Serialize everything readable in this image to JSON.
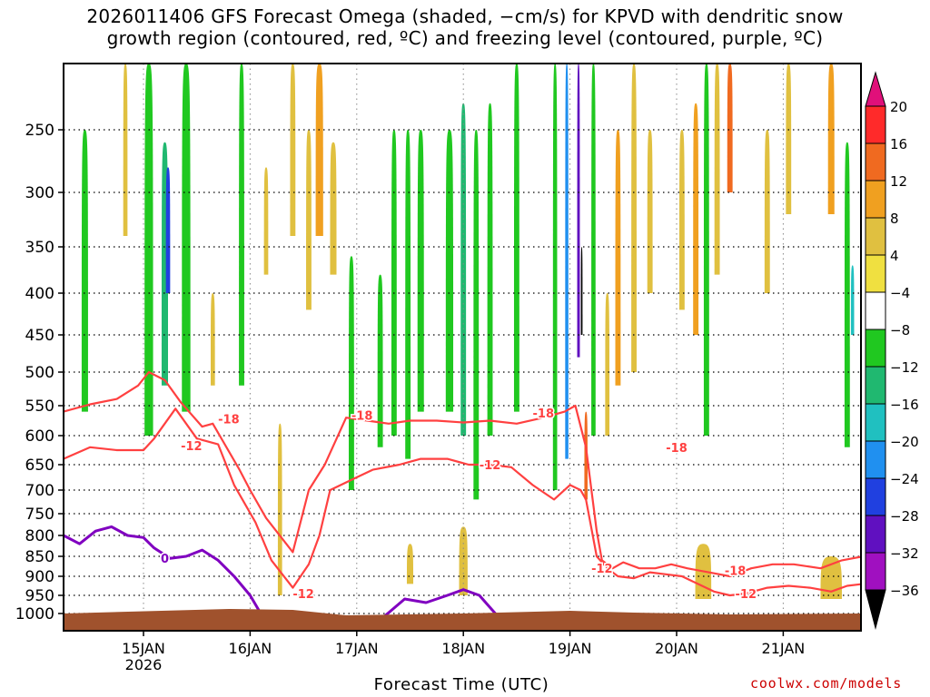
{
  "title": {
    "line1": "2026011406 GFS Forecast Omega (shaded, −cm/s) for KPVD with dendritic snow",
    "line2": "growth region (contoured, red, ºC) and freezing level (contoured, purple, ºC)"
  },
  "credit": "coolwx.com/models",
  "chart_data": {
    "type": "heatmap",
    "title": "2026011406 GFS Forecast Omega (shaded, −cm/s) for KPVD with dendritic snow growth region (contoured, red, ºC) and freezing level (contoured, purple, ºC)",
    "xlabel": "Forecast Time (UTC)",
    "ylabel": "",
    "x_ticks": [
      "15JAN",
      "16JAN",
      "17JAN",
      "18JAN",
      "19JAN",
      "20JAN",
      "21JAN"
    ],
    "x_subtick": "2026",
    "y_ticks": [
      250,
      300,
      350,
      400,
      450,
      500,
      550,
      600,
      650,
      700,
      750,
      800,
      850,
      900,
      950,
      1000
    ],
    "xlim_days": [
      14.25,
      21.75
    ],
    "ylim_hpa": [
      200,
      1025
    ],
    "colorbar": {
      "labels": [
        "20",
        "16",
        "12",
        "8",
        "4",
        "−4",
        "−8",
        "−12",
        "−16",
        "−20",
        "−24",
        "−28",
        "−32",
        "−36"
      ],
      "bounds": [
        20,
        16,
        12,
        8,
        4,
        -4,
        -8,
        -12,
        -16,
        -20,
        -24,
        -28,
        -32,
        -36
      ],
      "colors": [
        "#ff2a2a",
        "#f06a20",
        "#f0a020",
        "#e0c040",
        "#f0e040",
        "#ffffff",
        "#20c820",
        "#20b870",
        "#20c0c0",
        "#2090f0",
        "#2040e0",
        "#6010c0",
        "#a010c0",
        "#a0a0a0"
      ],
      "top_arrow_color": "#e0107a",
      "bottom_arrow_color": "#000000"
    },
    "omega_columns": [
      {
        "day": 14.35,
        "width": 0.05,
        "value": -6,
        "top": 220,
        "bottom": 640
      },
      {
        "day": 14.45,
        "width": 0.06,
        "value": -10,
        "top": 250,
        "bottom": 560
      },
      {
        "day": 14.55,
        "width": 0.05,
        "value": -7,
        "top": 260,
        "bottom": 600
      },
      {
        "day": 14.72,
        "width": 0.05,
        "value": -6,
        "top": 250,
        "bottom": 700
      },
      {
        "day": 14.83,
        "width": 0.04,
        "value": 6,
        "top": 200,
        "bottom": 340
      },
      {
        "day": 14.93,
        "width": 0.03,
        "value": -6,
        "top": 300,
        "bottom": 520
      },
      {
        "day": 15.05,
        "width": 0.08,
        "value": -8,
        "top": 200,
        "bottom": 600
      },
      {
        "day": 15.2,
        "width": 0.06,
        "value": -14,
        "top": 260,
        "bottom": 520
      },
      {
        "day": 15.23,
        "width": 0.04,
        "value": -26,
        "top": 280,
        "bottom": 400
      },
      {
        "day": 15.4,
        "width": 0.08,
        "value": -8,
        "top": 200,
        "bottom": 560
      },
      {
        "day": 15.55,
        "width": 0.05,
        "value": -6,
        "top": 250,
        "bottom": 600
      },
      {
        "day": 15.65,
        "width": 0.04,
        "value": 6,
        "top": 400,
        "bottom": 520
      },
      {
        "day": 15.78,
        "width": 0.04,
        "value": -6,
        "top": 200,
        "bottom": 480
      },
      {
        "day": 15.92,
        "width": 0.05,
        "value": -8,
        "top": 200,
        "bottom": 520
      },
      {
        "day": 16.05,
        "width": 0.05,
        "value": -6,
        "top": 220,
        "bottom": 580
      },
      {
        "day": 16.15,
        "width": 0.04,
        "value": 6,
        "top": 280,
        "bottom": 380
      },
      {
        "day": 16.28,
        "width": 0.04,
        "value": 6,
        "top": 580,
        "bottom": 950
      },
      {
        "day": 16.4,
        "width": 0.05,
        "value": 6,
        "top": 200,
        "bottom": 340
      },
      {
        "day": 16.55,
        "width": 0.05,
        "value": 6,
        "top": 250,
        "bottom": 420
      },
      {
        "day": 16.65,
        "width": 0.07,
        "value": 10,
        "top": 200,
        "bottom": 340
      },
      {
        "day": 16.78,
        "width": 0.06,
        "value": 6,
        "top": 260,
        "bottom": 380
      },
      {
        "day": 16.85,
        "width": 0.05,
        "value": -6,
        "top": 480,
        "bottom": 720
      },
      {
        "day": 16.95,
        "width": 0.05,
        "value": -8,
        "top": 360,
        "bottom": 700
      },
      {
        "day": 17.1,
        "width": 0.05,
        "value": -6,
        "top": 300,
        "bottom": 600
      },
      {
        "day": 17.22,
        "width": 0.05,
        "value": -10,
        "top": 380,
        "bottom": 620
      },
      {
        "day": 17.35,
        "width": 0.05,
        "value": -8,
        "top": 250,
        "bottom": 600
      },
      {
        "day": 17.48,
        "width": 0.05,
        "value": -10,
        "top": 250,
        "bottom": 640
      },
      {
        "day": 17.6,
        "width": 0.06,
        "value": -8,
        "top": 250,
        "bottom": 560
      },
      {
        "day": 17.73,
        "width": 0.05,
        "value": -6,
        "top": 200,
        "bottom": 520
      },
      {
        "day": 17.87,
        "width": 0.07,
        "value": -10,
        "top": 250,
        "bottom": 560
      },
      {
        "day": 18.0,
        "width": 0.05,
        "value": -12,
        "top": 230,
        "bottom": 600
      },
      {
        "day": 18.12,
        "width": 0.05,
        "value": -8,
        "top": 250,
        "bottom": 720
      },
      {
        "day": 18.25,
        "width": 0.05,
        "value": -10,
        "top": 230,
        "bottom": 600
      },
      {
        "day": 18.38,
        "width": 0.05,
        "value": -6,
        "top": 300,
        "bottom": 600
      },
      {
        "day": 18.5,
        "width": 0.05,
        "value": -8,
        "top": 200,
        "bottom": 560
      },
      {
        "day": 18.62,
        "width": 0.05,
        "value": -6,
        "top": 300,
        "bottom": 600
      },
      {
        "day": 18.75,
        "width": 0.05,
        "value": -6,
        "top": 200,
        "bottom": 520
      },
      {
        "day": 18.86,
        "width": 0.04,
        "value": -10,
        "top": 200,
        "bottom": 700
      },
      {
        "day": 18.97,
        "width": 0.03,
        "value": -22,
        "top": 200,
        "bottom": 640
      },
      {
        "day": 19.08,
        "width": 0.025,
        "value": -28,
        "top": 200,
        "bottom": 480
      },
      {
        "day": 19.11,
        "width": 0.015,
        "value": -40,
        "top": 350,
        "bottom": 450
      },
      {
        "day": 19.15,
        "width": 0.03,
        "value": 14,
        "top": 560,
        "bottom": 720
      },
      {
        "day": 19.22,
        "width": 0.04,
        "value": -8,
        "top": 200,
        "bottom": 600
      },
      {
        "day": 19.35,
        "width": 0.04,
        "value": 6,
        "top": 400,
        "bottom": 600
      },
      {
        "day": 19.45,
        "width": 0.05,
        "value": 10,
        "top": 250,
        "bottom": 520
      },
      {
        "day": 19.6,
        "width": 0.05,
        "value": 6,
        "top": 200,
        "bottom": 500
      },
      {
        "day": 19.75,
        "width": 0.05,
        "value": 6,
        "top": 250,
        "bottom": 400
      },
      {
        "day": 19.9,
        "width": 0.05,
        "value": -6,
        "top": 200,
        "bottom": 620
      },
      {
        "day": 20.05,
        "width": 0.05,
        "value": 6,
        "top": 250,
        "bottom": 420
      },
      {
        "day": 20.18,
        "width": 0.05,
        "value": 10,
        "top": 230,
        "bottom": 450
      },
      {
        "day": 20.28,
        "width": 0.05,
        "value": -8,
        "top": 200,
        "bottom": 600
      },
      {
        "day": 20.38,
        "width": 0.05,
        "value": 6,
        "top": 200,
        "bottom": 380
      },
      {
        "day": 20.5,
        "width": 0.05,
        "value": 14,
        "top": 200,
        "bottom": 300
      },
      {
        "day": 20.62,
        "width": 0.05,
        "value": -6,
        "top": 300,
        "bottom": 600
      },
      {
        "day": 20.85,
        "width": 0.05,
        "value": 6,
        "top": 250,
        "bottom": 400
      },
      {
        "day": 21.05,
        "width": 0.05,
        "value": 6,
        "top": 200,
        "bottom": 320
      },
      {
        "day": 21.3,
        "width": 0.05,
        "value": -6,
        "top": 250,
        "bottom": 600
      },
      {
        "day": 21.45,
        "width": 0.06,
        "value": 12,
        "top": 200,
        "bottom": 320
      },
      {
        "day": 21.6,
        "width": 0.05,
        "value": -8,
        "top": 260,
        "bottom": 620
      },
      {
        "day": 21.65,
        "width": 0.03,
        "value": -16,
        "top": 370,
        "bottom": 450
      },
      {
        "day": 20.25,
        "width": 0.15,
        "value": 6,
        "top": 820,
        "bottom": 960
      },
      {
        "day": 21.45,
        "width": 0.2,
        "value": 6,
        "top": 850,
        "bottom": 960
      },
      {
        "day": 18.0,
        "width": 0.08,
        "value": 6,
        "top": 780,
        "bottom": 950
      },
      {
        "day": 17.5,
        "width": 0.06,
        "value": 6,
        "top": 820,
        "bottom": 920
      }
    ],
    "series": [
      {
        "name": "-18",
        "color": "#ff4040",
        "points": [
          [
            14.25,
            560
          ],
          [
            14.5,
            548
          ],
          [
            14.75,
            540
          ],
          [
            14.95,
            520
          ],
          [
            15.05,
            500
          ],
          [
            15.2,
            512
          ],
          [
            15.35,
            545
          ],
          [
            15.55,
            585
          ],
          [
            15.65,
            580
          ],
          [
            15.9,
            660
          ],
          [
            16.0,
            700
          ],
          [
            16.15,
            760
          ],
          [
            16.4,
            840
          ],
          [
            16.55,
            700
          ],
          [
            16.7,
            650
          ],
          [
            16.9,
            570
          ],
          [
            17.1,
            575
          ],
          [
            17.3,
            580
          ],
          [
            17.5,
            575
          ],
          [
            17.75,
            575
          ],
          [
            18.0,
            578
          ],
          [
            18.25,
            575
          ],
          [
            18.5,
            580
          ],
          [
            18.75,
            570
          ],
          [
            18.95,
            560
          ],
          [
            19.05,
            550
          ],
          [
            19.15,
            620
          ],
          [
            19.25,
            790
          ],
          [
            19.3,
            860
          ],
          [
            19.4,
            880
          ],
          [
            19.5,
            865
          ],
          [
            19.65,
            880
          ],
          [
            19.8,
            880
          ],
          [
            19.95,
            870
          ],
          [
            20.1,
            880
          ],
          [
            20.3,
            890
          ],
          [
            20.5,
            900
          ],
          [
            20.7,
            880
          ],
          [
            20.9,
            870
          ],
          [
            21.1,
            870
          ],
          [
            21.35,
            880
          ],
          [
            21.55,
            860
          ],
          [
            21.75,
            850
          ]
        ],
        "label_positions": [
          [
            15.8,
            572
          ],
          [
            17.05,
            566
          ],
          [
            18.75,
            562
          ],
          [
            20.0,
            620
          ],
          [
            20.55,
            885
          ]
        ]
      },
      {
        "name": "-12",
        "color": "#ff4040",
        "points": [
          [
            14.25,
            640
          ],
          [
            14.5,
            620
          ],
          [
            14.75,
            625
          ],
          [
            15.0,
            625
          ],
          [
            15.1,
            605
          ],
          [
            15.3,
            555
          ],
          [
            15.5,
            605
          ],
          [
            15.7,
            615
          ],
          [
            15.85,
            690
          ],
          [
            16.05,
            770
          ],
          [
            16.2,
            860
          ],
          [
            16.4,
            930
          ],
          [
            16.55,
            870
          ],
          [
            16.65,
            800
          ],
          [
            16.75,
            700
          ],
          [
            16.95,
            680
          ],
          [
            17.15,
            660
          ],
          [
            17.4,
            650
          ],
          [
            17.6,
            640
          ],
          [
            17.85,
            640
          ],
          [
            18.05,
            650
          ],
          [
            18.25,
            650
          ],
          [
            18.45,
            655
          ],
          [
            18.65,
            690
          ],
          [
            18.85,
            720
          ],
          [
            19.0,
            690
          ],
          [
            19.1,
            700
          ],
          [
            19.15,
            720
          ],
          [
            19.25,
            850
          ],
          [
            19.35,
            880
          ],
          [
            19.45,
            900
          ],
          [
            19.6,
            905
          ],
          [
            19.75,
            890
          ],
          [
            19.9,
            895
          ],
          [
            20.05,
            900
          ],
          [
            20.2,
            920
          ],
          [
            20.35,
            940
          ],
          [
            20.5,
            950
          ],
          [
            20.65,
            945
          ],
          [
            20.85,
            930
          ],
          [
            21.05,
            925
          ],
          [
            21.25,
            930
          ],
          [
            21.45,
            940
          ],
          [
            21.6,
            925
          ],
          [
            21.75,
            920
          ]
        ],
        "label_positions": [
          [
            15.45,
            617
          ],
          [
            16.5,
            945
          ],
          [
            18.25,
            650
          ],
          [
            19.3,
            880
          ],
          [
            20.65,
            945
          ]
        ]
      },
      {
        "name": "0",
        "color": "#8000c0",
        "points": [
          [
            14.25,
            800
          ],
          [
            14.4,
            820
          ],
          [
            14.55,
            790
          ],
          [
            14.7,
            780
          ],
          [
            14.85,
            800
          ],
          [
            15.0,
            805
          ],
          [
            15.1,
            830
          ],
          [
            15.25,
            855
          ],
          [
            15.4,
            850
          ],
          [
            15.55,
            835
          ],
          [
            15.7,
            860
          ],
          [
            15.85,
            900
          ],
          [
            16.0,
            950
          ],
          [
            16.1,
            1000
          ],
          [
            16.25,
            1025
          ]
        ],
        "segment2": [
          [
            17.25,
            1010
          ],
          [
            17.45,
            960
          ],
          [
            17.65,
            970
          ],
          [
            17.85,
            950
          ],
          [
            18.0,
            935
          ],
          [
            18.15,
            950
          ],
          [
            18.3,
            1000
          ],
          [
            18.4,
            1020
          ]
        ],
        "label_positions": [
          [
            15.2,
            855
          ]
        ]
      }
    ],
    "terrain_top_hpa": 1000,
    "terrain_color": "#a0522d"
  }
}
